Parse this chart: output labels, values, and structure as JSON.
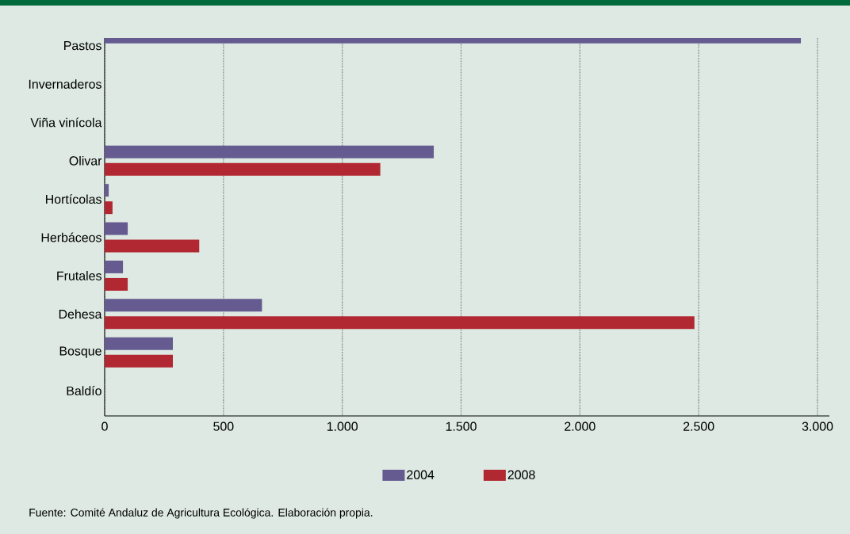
{
  "chart_data": {
    "type": "bar",
    "orientation": "horizontal",
    "categories": [
      "Pastos",
      "Invernaderos",
      "Viña vinícola",
      "Olivar",
      "Hortícolas",
      "Herbáceos",
      "Frutales",
      "Dehesa",
      "Bosque",
      "Baldío"
    ],
    "series": [
      {
        "name": "2004",
        "color": "#655b91",
        "values": [
          2930,
          null,
          null,
          1385,
          17,
          97,
          77,
          662,
          287,
          null
        ]
      },
      {
        "name": "2008",
        "color": "#b22832",
        "values": [
          null,
          null,
          null,
          1160,
          33,
          398,
          97,
          2482,
          287,
          null
        ]
      }
    ],
    "xlim": [
      0,
      3050
    ],
    "xticks": [
      0,
      500,
      {
        "value": 1000,
        "label": "1.000"
      },
      {
        "value": 1500,
        "label": "1.500"
      },
      {
        "value": 2000,
        "label": "2.000"
      },
      {
        "value": 2500,
        "label": "2.500"
      },
      {
        "value": 3000,
        "label": "3.000"
      }
    ],
    "grid": "x",
    "legend": "bottom",
    "annotations": [
      "Fuente: Comité Andaluz de Agricultura Ecológica. Elaboración propia."
    ]
  }
}
